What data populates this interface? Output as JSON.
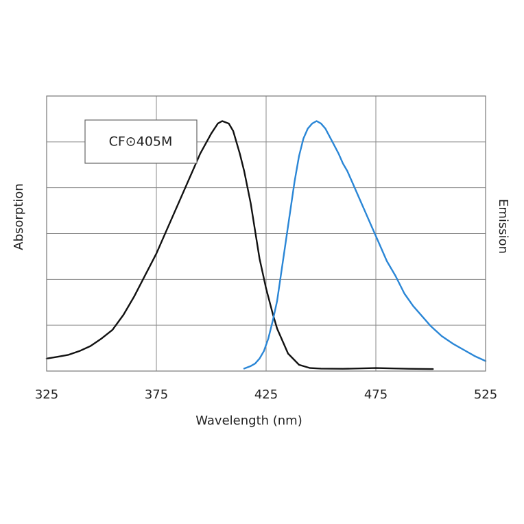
{
  "chart_data": {
    "type": "line",
    "legend_label": "CF⊙405M",
    "xlabel": "Wavelength (nm)",
    "ylabel_left": "Absorption",
    "ylabel_right": "Emission",
    "xlim": [
      325,
      525
    ],
    "ylim": [
      0,
      1.1
    ],
    "x_ticks": [
      "325",
      "375",
      "425",
      "475",
      "525"
    ],
    "grid": true,
    "legend_position": "top-left",
    "series": [
      {
        "key": "absorption",
        "color": "#111111",
        "points": [
          [
            325,
            0.05
          ],
          [
            330,
            0.057
          ],
          [
            335,
            0.065
          ],
          [
            340,
            0.08
          ],
          [
            345,
            0.1
          ],
          [
            350,
            0.13
          ],
          [
            355,
            0.165
          ],
          [
            360,
            0.225
          ],
          [
            365,
            0.3
          ],
          [
            370,
            0.385
          ],
          [
            375,
            0.47
          ],
          [
            380,
            0.57
          ],
          [
            385,
            0.67
          ],
          [
            390,
            0.77
          ],
          [
            395,
            0.87
          ],
          [
            400,
            0.95
          ],
          [
            403,
            0.99
          ],
          [
            405,
            1.0
          ],
          [
            408,
            0.99
          ],
          [
            410,
            0.96
          ],
          [
            413,
            0.87
          ],
          [
            415,
            0.8
          ],
          [
            418,
            0.67
          ],
          [
            420,
            0.56
          ],
          [
            422,
            0.45
          ],
          [
            425,
            0.33
          ],
          [
            428,
            0.23
          ],
          [
            430,
            0.17
          ],
          [
            433,
            0.11
          ],
          [
            435,
            0.07
          ],
          [
            440,
            0.025
          ],
          [
            445,
            0.012
          ],
          [
            450,
            0.01
          ],
          [
            460,
            0.009
          ],
          [
            475,
            0.012
          ],
          [
            490,
            0.009
          ],
          [
            500,
            0.008
          ],
          [
            501,
            0.008
          ]
        ]
      },
      {
        "key": "emission",
        "color": "#2a86d6",
        "points": [
          [
            415,
            0.01
          ],
          [
            418,
            0.02
          ],
          [
            420,
            0.03
          ],
          [
            422,
            0.05
          ],
          [
            424,
            0.08
          ],
          [
            426,
            0.13
          ],
          [
            428,
            0.2
          ],
          [
            430,
            0.28
          ],
          [
            432,
            0.4
          ],
          [
            434,
            0.52
          ],
          [
            436,
            0.64
          ],
          [
            438,
            0.76
          ],
          [
            440,
            0.86
          ],
          [
            442,
            0.93
          ],
          [
            444,
            0.97
          ],
          [
            446,
            0.99
          ],
          [
            448,
            1.0
          ],
          [
            450,
            0.99
          ],
          [
            452,
            0.97
          ],
          [
            455,
            0.92
          ],
          [
            458,
            0.87
          ],
          [
            460,
            0.83
          ],
          [
            462,
            0.8
          ],
          [
            464,
            0.76
          ],
          [
            466,
            0.72
          ],
          [
            468,
            0.68
          ],
          [
            470,
            0.64
          ],
          [
            473,
            0.58
          ],
          [
            476,
            0.52
          ],
          [
            480,
            0.44
          ],
          [
            484,
            0.38
          ],
          [
            488,
            0.31
          ],
          [
            492,
            0.26
          ],
          [
            496,
            0.22
          ],
          [
            500,
            0.18
          ],
          [
            505,
            0.14
          ],
          [
            510,
            0.11
          ],
          [
            515,
            0.085
          ],
          [
            520,
            0.06
          ],
          [
            525,
            0.04
          ]
        ]
      }
    ]
  }
}
